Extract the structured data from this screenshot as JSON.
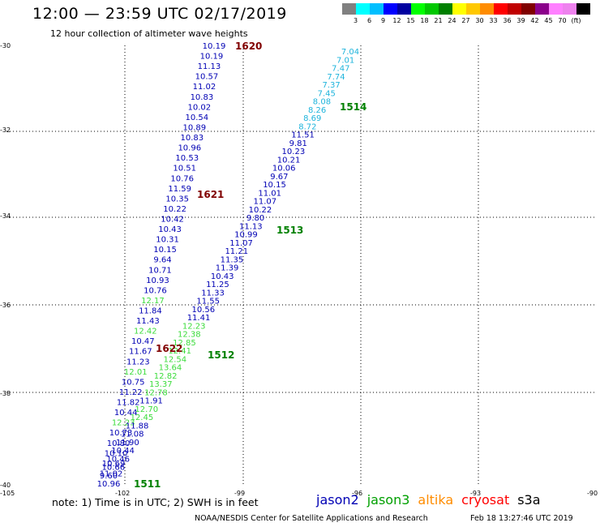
{
  "header": {
    "title": "12:00 — 23:59 UTC 02/17/2019",
    "subtitle": "12 hour collection of altimeter wave heights"
  },
  "legend": {
    "colors": [
      "#808080",
      "#00ffff",
      "#00bfff",
      "#0000ff",
      "#0000a0",
      "#00ff00",
      "#00c800",
      "#008000",
      "#ffff00",
      "#ffc800",
      "#ff8c00",
      "#ff0000",
      "#c00000",
      "#800000",
      "#8b008b",
      "#ff80ff",
      "#ee82ee",
      "#000000"
    ],
    "labels": [
      "3",
      "6",
      "9",
      "12",
      "15",
      "18",
      "21",
      "24",
      "27",
      "30",
      "33",
      "36",
      "39",
      "42",
      "45",
      "70",
      "(ft)"
    ]
  },
  "axes": {
    "x_ticks": [
      "-105",
      "-102",
      "-99",
      "-96",
      "-93",
      "-90"
    ],
    "y_ticks": [
      "-30",
      "-32",
      "-34",
      "-36",
      "-38",
      "-40"
    ]
  },
  "colors": {
    "jason2": "#0000b4",
    "jason3": "#00a000",
    "altika": "#ff8c00",
    "cryosat": "#ff0000",
    "s3a": "#000000",
    "dark_blue": "#0000b4",
    "light_green": "#3cdc3c",
    "cyan": "#1eb4dc",
    "pass_green": "#008000",
    "pass_red": "#800000"
  },
  "tracks": [
    {
      "values": [
        "10.19",
        "10.19",
        "11.13",
        "10.57",
        "11.02",
        "10.83",
        "10.02",
        "10.54",
        "10.89",
        "10.83",
        "10.96",
        "10.53",
        "10.51",
        "10.76",
        "11.59",
        "10.35",
        "10.22",
        "10.42",
        "10.43",
        "10.31",
        "10.15",
        "9.64",
        "10.71",
        "10.93",
        "10.76",
        "12.17",
        "11.84",
        "11.43",
        "12.42",
        "10.47",
        "11.67",
        "11.23",
        "12.01",
        "10.75",
        "11.22",
        "11.82",
        "10.44",
        "12.23",
        "10.73",
        "10.80",
        "10.10",
        "10.69",
        "11.02",
        "10.96"
      ],
      "colors": [
        "b",
        "b",
        "b",
        "b",
        "b",
        "b",
        "b",
        "b",
        "b",
        "b",
        "b",
        "b",
        "b",
        "b",
        "b",
        "b",
        "b",
        "b",
        "b",
        "b",
        "b",
        "b",
        "b",
        "b",
        "b",
        "g",
        "b",
        "b",
        "g",
        "b",
        "b",
        "b",
        "g",
        "b",
        "b",
        "b",
        "b",
        "g",
        "b",
        "b",
        "b",
        "b",
        "b",
        "b"
      ]
    },
    {
      "values": [
        "7.04",
        "7.01",
        "7.47",
        "7.74",
        "7.37",
        "7.45",
        "8.08",
        "8.26",
        "8.69",
        "8.72",
        "11.51",
        "9.81",
        "10.23",
        "10.21",
        "10.06",
        "9.67",
        "10.15",
        "11.01",
        "11.07",
        "10.22",
        "9.80",
        "11.13",
        "10.99",
        "11.07",
        "11.21",
        "11.35",
        "11.39",
        "10.43",
        "11.25",
        "11.33",
        "11.55",
        "10.56",
        "11.41",
        "12.23",
        "12.38",
        "12.85",
        "12.41",
        "12.54",
        "13.64",
        "12.82",
        "13.37",
        "12.78",
        "11.91",
        "12.70",
        "12.45",
        "11.88",
        "11.08",
        "11.90",
        "10.44",
        "10.46",
        "10.66",
        "9.60"
      ],
      "colors": [
        "c",
        "c",
        "c",
        "c",
        "c",
        "c",
        "c",
        "c",
        "c",
        "c",
        "b",
        "b",
        "b",
        "b",
        "b",
        "b",
        "b",
        "b",
        "b",
        "b",
        "b",
        "b",
        "b",
        "b",
        "b",
        "b",
        "b",
        "b",
        "b",
        "b",
        "b",
        "b",
        "b",
        "g",
        "g",
        "g",
        "g",
        "g",
        "g",
        "g",
        "g",
        "g",
        "b",
        "g",
        "g",
        "b",
        "b",
        "b",
        "b",
        "b",
        "b",
        "b"
      ]
    }
  ],
  "passes": [
    {
      "id": "1620",
      "color": "pass_red"
    },
    {
      "id": "1621",
      "color": "pass_red"
    },
    {
      "id": "1622",
      "color": "pass_red"
    },
    {
      "id": "1514",
      "color": "pass_green"
    },
    {
      "id": "1513",
      "color": "pass_green"
    },
    {
      "id": "1512",
      "color": "pass_green"
    },
    {
      "id": "1511",
      "color": "pass_green"
    }
  ],
  "note": "note: 1) Time is in UTC; 2) SWH is in feet",
  "missions": [
    "jason2",
    "jason3",
    "altika",
    "cryosat",
    "s3a"
  ],
  "footer": {
    "credit": "NOAA/NESDIS Center for Satellite Applications and Research",
    "generated": "Feb 18 13:27:46 UTC 2019"
  }
}
